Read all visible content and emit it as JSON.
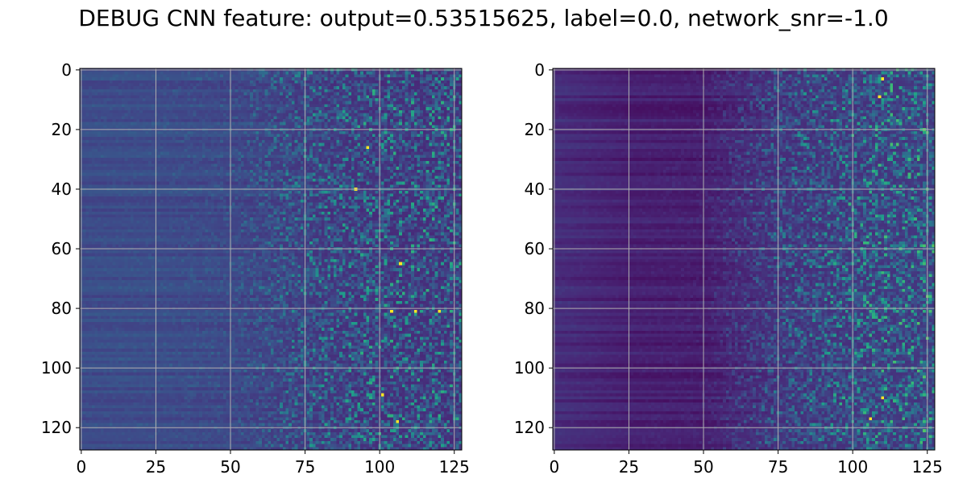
{
  "figure": {
    "title": "DEBUG CNN feature: output=0.53515625, label=0.0, network_snr=-1.0"
  },
  "chart_data": [
    {
      "type": "heatmap",
      "title": "",
      "xlabel": "",
      "ylabel": "",
      "xlim": [
        -0.5,
        127.5
      ],
      "ylim": [
        127.5,
        -0.5
      ],
      "grid": true,
      "colormap": "viridis",
      "colors": {
        "low": "#440154",
        "mid": "#21918c",
        "high": "#fde725"
      },
      "rows": 128,
      "cols": 128,
      "xticks": [
        0,
        25,
        50,
        75,
        100,
        125
      ],
      "xtick_labels": [
        "0",
        "25",
        "50",
        "75",
        "100",
        "125"
      ],
      "yticks": [
        0,
        20,
        40,
        60,
        80,
        100,
        120
      ],
      "ytick_labels": [
        "0",
        "20",
        "40",
        "60",
        "80",
        "100",
        "120"
      ],
      "value_profile": {
        "columns": [
          0,
          25,
          50,
          75,
          100,
          127
        ],
        "typical_value": [
          0.22,
          0.22,
          0.2,
          0.15,
          0.12,
          0.12
        ],
        "noise_amplitude": [
          0.03,
          0.04,
          0.08,
          0.3,
          0.4,
          0.4
        ]
      },
      "hot_spots": [
        [
          96,
          26
        ],
        [
          92,
          40
        ],
        [
          107,
          65
        ],
        [
          104,
          81
        ],
        [
          112,
          81
        ],
        [
          120,
          81
        ],
        [
          101,
          109
        ],
        [
          106,
          118
        ]
      ]
    },
    {
      "type": "heatmap",
      "title": "",
      "xlabel": "",
      "ylabel": "",
      "xlim": [
        -0.5,
        127.5
      ],
      "ylim": [
        127.5,
        -0.5
      ],
      "grid": true,
      "colormap": "viridis",
      "colors": {
        "low": "#440154",
        "mid": "#21918c",
        "high": "#fde725"
      },
      "rows": 128,
      "cols": 128,
      "xticks": [
        0,
        25,
        50,
        75,
        100,
        125
      ],
      "xtick_labels": [
        "0",
        "25",
        "50",
        "75",
        "100",
        "125"
      ],
      "yticks": [
        0,
        20,
        40,
        60,
        80,
        100,
        120
      ],
      "ytick_labels": [
        "0",
        "20",
        "40",
        "60",
        "80",
        "100",
        "120"
      ],
      "value_profile": {
        "columns": [
          0,
          25,
          50,
          75,
          100,
          127
        ],
        "typical_value": [
          0.12,
          0.08,
          0.07,
          0.12,
          0.14,
          0.15
        ],
        "noise_amplitude": [
          0.02,
          0.02,
          0.04,
          0.25,
          0.4,
          0.45
        ]
      },
      "hot_spots": [
        [
          110,
          3
        ],
        [
          109,
          9
        ],
        [
          110,
          110
        ],
        [
          106,
          117
        ]
      ]
    }
  ]
}
